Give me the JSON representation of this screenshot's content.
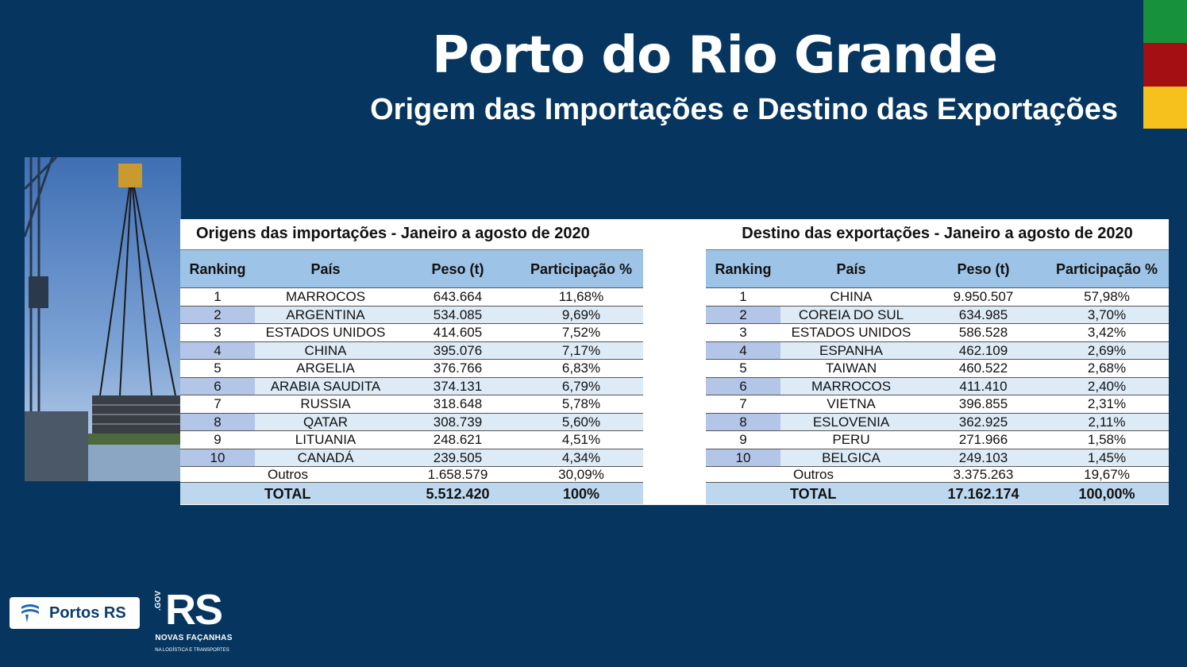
{
  "header": {
    "title": "Porto do Rio Grande",
    "subtitle": "Origem das Importações e Destino das Exportações"
  },
  "flag_colors": [
    "#17913b",
    "#a30f12",
    "#f6c11d"
  ],
  "imports": {
    "title": "Origens das importações - Janeiro a agosto de 2020",
    "columns": {
      "ranking": "Ranking",
      "pais": "País",
      "peso": "Peso (t)",
      "part": "Participação %"
    },
    "rows": [
      {
        "rank": "1",
        "country": "MARROCOS",
        "peso": "643.664",
        "part": "11,68%"
      },
      {
        "rank": "2",
        "country": "ARGENTINA",
        "peso": "534.085",
        "part": "9,69%"
      },
      {
        "rank": "3",
        "country": "ESTADOS UNIDOS",
        "peso": "414.605",
        "part": "7,52%"
      },
      {
        "rank": "4",
        "country": "CHINA",
        "peso": "395.076",
        "part": "7,17%"
      },
      {
        "rank": "5",
        "country": "ARGELIA",
        "peso": "376.766",
        "part": "6,83%"
      },
      {
        "rank": "6",
        "country": "ARABIA SAUDITA",
        "peso": "374.131",
        "part": "6,79%"
      },
      {
        "rank": "7",
        "country": "RUSSIA",
        "peso": "318.648",
        "part": "5,78%"
      },
      {
        "rank": "8",
        "country": "QATAR",
        "peso": "308.739",
        "part": "5,60%"
      },
      {
        "rank": "9",
        "country": "LITUANIA",
        "peso": "248.621",
        "part": "4,51%"
      },
      {
        "rank": "10",
        "country": "CANADÁ",
        "peso": "239.505",
        "part": "4,34%"
      }
    ],
    "outros": {
      "label": "Outros",
      "peso": "1.658.579",
      "part": "30,09%"
    },
    "total": {
      "label": "TOTAL",
      "peso": "5.512.420",
      "part": "100%"
    }
  },
  "exports": {
    "title": "Destino das exportações - Janeiro a agosto de 2020",
    "columns": {
      "ranking": "Ranking",
      "pais": "País",
      "peso": "Peso (t)",
      "part": "Participação %"
    },
    "rows": [
      {
        "rank": "1",
        "country": "CHINA",
        "peso": "9.950.507",
        "part": "57,98%"
      },
      {
        "rank": "2",
        "country": "COREIA DO SUL",
        "peso": "634.985",
        "part": "3,70%"
      },
      {
        "rank": "3",
        "country": "ESTADOS UNIDOS",
        "peso": "586.528",
        "part": "3,42%"
      },
      {
        "rank": "4",
        "country": "ESPANHA",
        "peso": "462.109",
        "part": "2,69%"
      },
      {
        "rank": "5",
        "country": "TAIWAN",
        "peso": "460.522",
        "part": "2,68%"
      },
      {
        "rank": "6",
        "country": "MARROCOS",
        "peso": "411.410",
        "part": "2,40%"
      },
      {
        "rank": "7",
        "country": "VIETNA",
        "peso": "396.855",
        "part": "2,31%"
      },
      {
        "rank": "8",
        "country": "ESLOVENIA",
        "peso": "362.925",
        "part": "2,11%"
      },
      {
        "rank": "9",
        "country": "PERU",
        "peso": "271.966",
        "part": "1,58%"
      },
      {
        "rank": "10",
        "country": "BELGICA",
        "peso": "249.103",
        "part": "1,45%"
      }
    ],
    "outros": {
      "label": "Outros",
      "peso": "3.375.263",
      "part": "19,67%"
    },
    "total": {
      "label": "TOTAL",
      "peso": "17.162.174",
      "part": "100,00%"
    }
  },
  "logos": {
    "portos": {
      "text": "Portos RS",
      "icon": "portos-wave-icon"
    },
    "rs": {
      "vertical": ".GOV",
      "big": "RS",
      "line1": "NOVAS FAÇANHAS",
      "line2": "NA LOGÍSTICA E TRANSPORTES"
    }
  }
}
